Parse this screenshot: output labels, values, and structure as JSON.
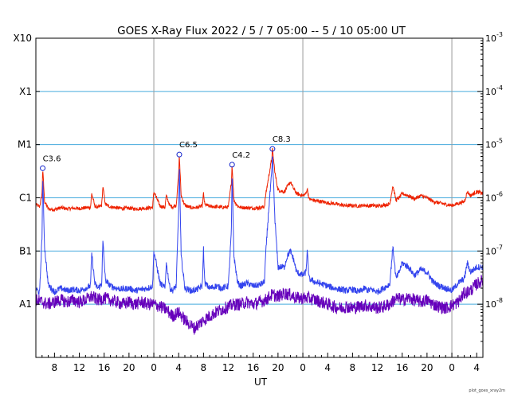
{
  "chart_data": {
    "type": "line",
    "title": "GOES X-Ray Flux   2022 /  5 /  7   05:00 --  5 / 10   05:00   UT",
    "xlabel": "UT",
    "credit": "plot_goes_xray2m",
    "x_start_hour": 5,
    "x_end_hour": 77,
    "x_tick_labels": [
      "8",
      "12",
      "16",
      "20",
      "0",
      "4",
      "8",
      "12",
      "16",
      "20",
      "0",
      "4",
      "8",
      "12",
      "16",
      "20",
      "0",
      "4"
    ],
    "day_boundaries_hours": [
      24,
      48,
      72
    ],
    "y_scale": "log",
    "ylim": [
      1e-09,
      0.001
    ],
    "y_left_ticks": [
      {
        "label": "A1",
        "value": 1e-08
      },
      {
        "label": "B1",
        "value": 1e-07
      },
      {
        "label": "C1",
        "value": 1e-06
      },
      {
        "label": "M1",
        "value": 1e-05
      },
      {
        "label": "X1",
        "value": 0.0001
      },
      {
        "label": "X10",
        "value": 0.001
      }
    ],
    "y_right_ticks": [
      {
        "base": "10",
        "exp": "-3",
        "value": 0.001
      },
      {
        "base": "10",
        "exp": "-4",
        "value": 0.0001
      },
      {
        "base": "10",
        "exp": "-5",
        "value": 1e-05
      },
      {
        "base": "10",
        "exp": "-6",
        "value": 1e-06
      },
      {
        "base": "10",
        "exp": "-7",
        "value": 1e-07
      },
      {
        "base": "10",
        "exp": "-8",
        "value": 1e-08
      }
    ],
    "grid": "horizontal at class boundaries",
    "flare_annotations": [
      {
        "label": "C3.6",
        "time_h": 6.1,
        "flux": 3.6e-06
      },
      {
        "label": "C6.5",
        "time_h": 28.1,
        "flux": 6.5e-06
      },
      {
        "label": "C4.2",
        "time_h": 36.6,
        "flux": 4.2e-06
      },
      {
        "label": "C8.3",
        "time_h": 43.1,
        "flux": 8.3e-06
      }
    ],
    "series": [
      {
        "color": "#ee2200",
        "x": [
          5,
          5.6,
          6.0,
          6.1,
          6.4,
          7.0,
          8.0,
          9.0,
          10,
          11,
          12,
          13,
          13.8,
          14,
          14.5,
          15,
          15.6,
          15.8,
          16.2,
          17,
          18,
          19,
          20,
          21,
          22,
          23,
          23.8,
          24,
          25,
          25.8,
          26,
          26.6,
          27,
          27.6,
          28.0,
          28.1,
          28.4,
          29,
          30,
          31,
          31.8,
          32,
          32.2,
          33,
          34,
          35,
          36,
          36.5,
          36.6,
          36.9,
          37.5,
          38,
          39,
          40,
          41,
          41.8,
          42,
          42.5,
          43,
          43.1,
          43.5,
          44,
          45,
          45.5,
          46,
          46.5,
          47,
          48,
          48.5,
          48.7,
          49,
          50,
          51,
          52,
          53,
          54,
          55,
          56,
          57,
          58,
          58.5,
          59,
          60,
          61,
          62,
          62.5,
          63,
          63.5,
          64,
          65,
          66,
          67,
          68,
          69,
          70,
          71,
          72,
          73,
          74,
          74.5,
          75,
          76,
          77
        ],
        "values": [
          7.5e-07,
          6.8e-07,
          1.2e-06,
          3.6e-06,
          8.5e-07,
          6.2e-07,
          6e-07,
          6.5e-07,
          6.2e-07,
          6.4e-07,
          6.3e-07,
          6.5e-07,
          6.6e-07,
          1.2e-06,
          7e-07,
          6.6e-07,
          7.2e-07,
          1.6e-06,
          7.5e-07,
          6.8e-07,
          6.5e-07,
          6.3e-07,
          6.4e-07,
          6.2e-07,
          6.3e-07,
          6.4e-07,
          6.6e-07,
          1.3e-06,
          7e-07,
          6.6e-07,
          1.1e-06,
          7e-07,
          6.8e-07,
          7.2e-07,
          2.8e-06,
          6.5e-06,
          1.1e-06,
          7.2e-07,
          6.5e-07,
          6.6e-07,
          7e-07,
          1.2e-06,
          7.5e-07,
          6.9e-07,
          6.8e-07,
          6.6e-07,
          6.7e-07,
          2e-06,
          4.2e-06,
          9e-07,
          7e-07,
          6.6e-07,
          6.5e-07,
          6.4e-07,
          6.5e-07,
          6.8e-07,
          1.1e-06,
          2.5e-06,
          5.5e-06,
          8.3e-06,
          3e-06,
          1.4e-06,
          1.3e-06,
          1.6e-06,
          2e-06,
          1.5e-06,
          1.2e-06,
          1.1e-06,
          1.2e-06,
          1.5e-06,
          9.5e-07,
          8.8e-07,
          8.5e-07,
          8e-07,
          7.8e-07,
          7.4e-07,
          7.1e-07,
          7.2e-07,
          7e-07,
          7.3e-07,
          7e-07,
          7.2e-07,
          7e-07,
          7.3e-07,
          7.6e-07,
          1.7e-06,
          9e-07,
          1e-06,
          1.2e-06,
          1.1e-06,
          9.5e-07,
          1.1e-06,
          1e-06,
          8.5e-07,
          8e-07,
          7.5e-07,
          7.2e-07,
          7.8e-07,
          8.5e-07,
          1.3e-06,
          1.1e-06,
          1.3e-06,
          1.2e-06
        ]
      },
      {
        "color": "#3344ee",
        "x": [
          5,
          5.6,
          6.0,
          6.1,
          6.4,
          7.0,
          8.0,
          9.0,
          10,
          11,
          12,
          13,
          13.8,
          14,
          14.5,
          15,
          15.6,
          15.8,
          16.2,
          17,
          18,
          19,
          20,
          21,
          22,
          23,
          23.8,
          24,
          25,
          25.8,
          26,
          26.6,
          27,
          27.6,
          28.0,
          28.1,
          28.4,
          29,
          30,
          31,
          31.8,
          32,
          32.2,
          33,
          34,
          35,
          36,
          36.5,
          36.6,
          36.9,
          37.5,
          38,
          39,
          40,
          41,
          41.8,
          42,
          42.5,
          43,
          43.1,
          43.5,
          44,
          45,
          45.5,
          46,
          46.5,
          47,
          48,
          48.5,
          48.7,
          49,
          50,
          51,
          52,
          53,
          54,
          55,
          56,
          57,
          58,
          58.5,
          59,
          60,
          61,
          62,
          62.5,
          63,
          63.5,
          64,
          65,
          66,
          67,
          68,
          69,
          70,
          71,
          72,
          73,
          74,
          74.5,
          75,
          76,
          77
        ],
        "values": [
          2e-08,
          1.6e-08,
          2e-07,
          2.6e-06,
          1.2e-07,
          2.3e-08,
          1.7e-08,
          2e-08,
          1.8e-08,
          1.9e-08,
          1.8e-08,
          2e-08,
          2.2e-08,
          9e-08,
          2.4e-08,
          2e-08,
          2.4e-08,
          1.5e-07,
          2.8e-08,
          2.2e-08,
          2e-08,
          1.9e-08,
          2e-08,
          1.8e-08,
          1.9e-08,
          2e-08,
          2.2e-08,
          1e-07,
          2.5e-08,
          2e-08,
          6e-08,
          2e-08,
          1.8e-08,
          2.2e-08,
          6e-07,
          4.5e-06,
          8e-08,
          2e-08,
          1.8e-08,
          1.9e-08,
          2.2e-08,
          1.1e-07,
          2.5e-08,
          2e-08,
          2.2e-08,
          2e-08,
          2.2e-08,
          2.5e-07,
          3e-06,
          8e-08,
          2.5e-08,
          2.2e-08,
          2.5e-08,
          2.2e-08,
          2.3e-08,
          2.6e-08,
          8e-08,
          6e-07,
          3e-06,
          6.5e-06,
          4e-07,
          5e-08,
          5e-08,
          8e-08,
          1e-07,
          7e-08,
          4e-08,
          3.5e-08,
          4e-08,
          1e-07,
          3e-08,
          2.6e-08,
          2.4e-08,
          2.2e-08,
          2e-08,
          1.9e-08,
          1.8e-08,
          1.9e-08,
          1.7e-08,
          2e-08,
          1.8e-08,
          1.9e-08,
          1.7e-08,
          2e-08,
          2.4e-08,
          1.2e-07,
          3e-08,
          4e-08,
          6e-08,
          5e-08,
          3.5e-08,
          4.5e-08,
          4e-08,
          2.6e-08,
          2.2e-08,
          2e-08,
          1.8e-08,
          2.5e-08,
          3e-08,
          6e-08,
          4e-08,
          5e-08,
          5e-08
        ]
      },
      {
        "color": "#6600bb",
        "x": [
          5,
          6,
          7,
          8,
          9,
          10,
          11,
          12,
          13,
          14,
          15,
          16,
          17,
          18,
          19,
          20,
          21,
          22,
          23,
          24,
          25,
          26,
          27,
          28,
          29,
          30,
          30.5,
          31,
          32,
          33,
          34,
          35,
          36,
          37,
          38,
          39,
          40,
          41,
          42,
          43,
          44,
          45,
          46,
          47,
          48,
          49,
          50,
          51,
          52,
          53,
          54,
          55,
          56,
          57,
          58,
          59,
          60,
          61,
          62,
          63,
          64,
          65,
          66,
          67,
          68,
          69,
          70,
          71,
          72,
          73,
          74,
          75,
          76,
          77
        ],
        "values": [
          1.2e-08,
          1.1e-08,
          1e-08,
          1.1e-08,
          1.2e-08,
          1.1e-08,
          1.2e-08,
          1.1e-08,
          1.2e-08,
          1.4e-08,
          1.2e-08,
          1.3e-08,
          1.2e-08,
          1.1e-08,
          1e-08,
          1.1e-08,
          1e-08,
          1.1e-08,
          1e-08,
          1e-08,
          9e-09,
          8e-09,
          6e-09,
          7e-09,
          5e-09,
          4e-09,
          3.5e-09,
          4e-09,
          5e-09,
          6e-09,
          7e-09,
          8e-09,
          9e-09,
          1e-08,
          1e-08,
          1.1e-08,
          1e-08,
          1.1e-08,
          1.2e-08,
          1.5e-08,
          1.4e-08,
          1.6e-08,
          1.5e-08,
          1.3e-08,
          1.3e-08,
          1.3e-08,
          1.2e-08,
          1.1e-08,
          1e-08,
          9e-09,
          8.5e-09,
          9e-09,
          8.5e-09,
          9e-09,
          9.5e-09,
          9e-09,
          8.5e-09,
          9e-09,
          1e-08,
          1.3e-08,
          1.2e-08,
          1.3e-08,
          1.2e-08,
          1.1e-08,
          1.2e-08,
          1e-08,
          9e-09,
          8.5e-09,
          9.5e-09,
          1.1e-08,
          1.6e-08,
          1.8e-08,
          2.4e-08,
          2.8e-08
        ]
      }
    ]
  }
}
